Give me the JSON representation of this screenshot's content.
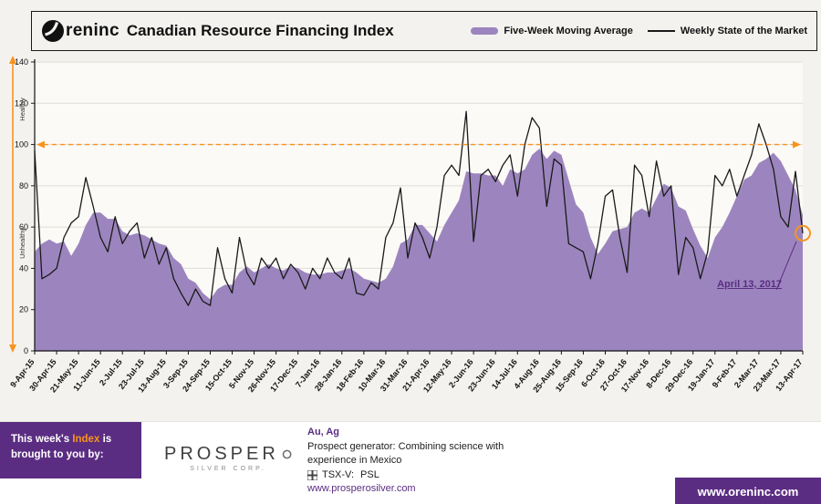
{
  "header": {
    "brand": "Oreninc",
    "brand_wordmark": "reninc",
    "title": "Canadian Resource Financing Index",
    "legend": [
      {
        "label": "Five-Week Moving Average",
        "color": "#9c85be",
        "swatch": "area"
      },
      {
        "label": "Weekly State of the Market",
        "color": "#1a1a1a",
        "swatch": "line"
      }
    ]
  },
  "chart_data": {
    "type": "area",
    "title": "Oreninc Canadian Resource Financing Index",
    "ylim": [
      0,
      140
    ],
    "yticks": [
      0,
      20,
      40,
      60,
      80,
      100,
      120,
      140
    ],
    "ylabel_zones": [
      {
        "label": "Healthy",
        "range": [
          100,
          140
        ]
      },
      {
        "label": "Unhealthy",
        "range": [
          0,
          100
        ]
      }
    ],
    "reference_line": {
      "value": 100,
      "color": "#f7941e",
      "style": "dashed"
    },
    "x_tick_every": 3,
    "x_tick_labels": [
      "9-Apr-15",
      "30-Apr-15",
      "21-May-15",
      "11-Jun-15",
      "2-Jul-15",
      "23-Jul-15",
      "13-Aug-15",
      "3-Sep-15",
      "24-Sep-15",
      "15-Oct-15",
      "5-Nov-15",
      "26-Nov-15",
      "17-Dec-15",
      "7-Jan-16",
      "28-Jan-16",
      "18-Feb-16",
      "10-Mar-16",
      "31-Mar-16",
      "21-Apr-16",
      "12-May-16",
      "2-Jun-16",
      "23-Jun-16",
      "14-Jul-16",
      "4-Aug-16",
      "25-Aug-16",
      "15-Sep-16",
      "6-Oct-16",
      "27-Oct-16",
      "17-Nov-16",
      "8-Dec-16",
      "29-Dec-16",
      "19-Jan-17",
      "9-Feb-17",
      "2-Mar-17",
      "23-Mar-17",
      "13-Apr-17"
    ],
    "series": [
      {
        "name": "Five-Week Moving Average",
        "type": "area",
        "color": "#9c85be",
        "values": [
          48,
          52,
          54,
          52,
          53,
          46,
          52,
          61,
          67,
          67,
          64,
          64,
          58,
          56,
          57,
          56,
          54,
          52,
          51,
          45,
          42,
          35,
          33,
          28,
          25,
          30,
          32,
          32,
          38,
          41,
          38,
          40,
          42,
          40,
          39,
          41,
          40,
          38,
          37,
          37,
          38,
          38,
          39,
          40,
          38,
          35,
          34,
          33,
          35,
          41,
          52,
          54,
          61,
          61,
          57,
          53,
          61,
          67,
          73,
          87,
          86,
          86,
          85,
          85,
          80,
          88,
          86,
          88,
          95,
          98,
          93,
          97,
          95,
          83,
          71,
          67,
          55,
          47,
          52,
          58,
          59,
          60,
          67,
          69,
          67,
          74,
          81,
          79,
          70,
          68,
          59,
          51,
          45,
          55,
          60,
          67,
          75,
          83,
          85,
          91,
          93,
          96,
          92,
          85,
          78,
          66
        ]
      },
      {
        "name": "Weekly State of the Market",
        "type": "line",
        "color": "#1a1a1a",
        "values": [
          97,
          35,
          37,
          40,
          55,
          62,
          65,
          84,
          70,
          55,
          48,
          65,
          52,
          58,
          62,
          45,
          55,
          42,
          50,
          35,
          28,
          22,
          30,
          24,
          22,
          50,
          35,
          28,
          55,
          38,
          32,
          45,
          40,
          45,
          35,
          42,
          38,
          30,
          40,
          35,
          45,
          38,
          35,
          45,
          28,
          27,
          33,
          30,
          55,
          62,
          79,
          45,
          62,
          55,
          45,
          60,
          85,
          90,
          85,
          116,
          53,
          85,
          88,
          82,
          90,
          95,
          75,
          100,
          113,
          108,
          70,
          93,
          90,
          52,
          50,
          48,
          35,
          52,
          75,
          78,
          55,
          38,
          90,
          85,
          65,
          92,
          75,
          80,
          37,
          55,
          50,
          35,
          48,
          85,
          80,
          88,
          75,
          85,
          95,
          110,
          100,
          88,
          65,
          60,
          87,
          57
        ]
      }
    ],
    "annotation": {
      "label": "April 13, 2017",
      "x_index": 105,
      "value": 57,
      "color": "#5b2d82"
    },
    "endpoint_marker": {
      "x_index": 105,
      "value": 57,
      "color": "#f7941e"
    }
  },
  "footer": {
    "sponsor_box": {
      "line1_prefix": "This week's",
      "highlight": "Index",
      "line1_suffix": "is",
      "line2": "brought to you by:"
    },
    "sponsor_logo": {
      "name": "PROSPERO",
      "name_prefix": "PROSPER",
      "subtitle": "SILVER CORP."
    },
    "sponsor_info": {
      "metals": "Au, Ag",
      "description_line1": "Prospect generator: Combining science with",
      "description_line2": "experience in Mexico",
      "ticker_label": "TSX-V:",
      "ticker": "PSL",
      "website": "www.prosperosilver.com"
    },
    "oreninc_site": "www.oreninc.com"
  },
  "colors": {
    "purple_dark": "#5b2d82",
    "purple_area": "#9c85be",
    "orange": "#f7941e",
    "line_black": "#1a1a1a"
  }
}
